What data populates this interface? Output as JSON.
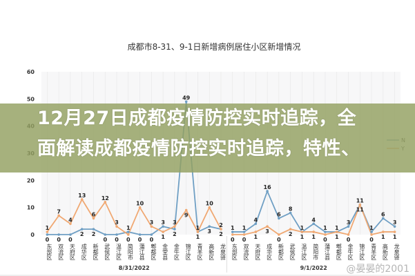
{
  "chart_data": {
    "type": "line",
    "title": "成都市8-31、9-1日新增病例居住小区新增情况",
    "ylim": [
      0,
      60
    ],
    "yticks": [
      0,
      10,
      20,
      30,
      40,
      50,
      60
    ],
    "groups": [
      {
        "label": "8/31/2022",
        "categories": [
          "东部区",
          "双流区",
          "天府区",
          "成华区",
          "新都区",
          "武侯区",
          "温江区",
          "简阳市",
          "蒲江县",
          "郫都区",
          "金堂县",
          "金牛区",
          "锦江区",
          "青羊区",
          "高新区",
          "龙泉驿"
        ],
        "N": [
          0,
          0,
          0,
          2,
          2,
          0,
          0,
          1,
          0,
          0,
          3,
          2,
          49,
          1,
          3,
          2
        ],
        "Y": [
          1,
          7,
          4,
          13,
          6,
          12,
          3,
          0,
          10,
          3,
          1,
          3,
          9,
          1,
          10,
          2
        ]
      },
      {
        "label": "9/1/2022",
        "categories": [
          "东部区",
          "双流区",
          "天府区",
          "成华区",
          "新都区",
          "武侯区",
          "温江区",
          "简阳市",
          "蒲江县",
          "郫都区",
          "金牛区",
          "锦江区",
          "青羊区",
          "高新区",
          "龙泉驿"
        ],
        "N": [
          1,
          1,
          4,
          16,
          6,
          8,
          1,
          4,
          1,
          1,
          3,
          11,
          1,
          6,
          3
        ],
        "Y": [
          0,
          0,
          1,
          3,
          0,
          2,
          1,
          1,
          0,
          1,
          0,
          11,
          0,
          1,
          1
        ]
      }
    ],
    "series": [
      {
        "name": "N",
        "color": "#6f9fc4"
      },
      {
        "name": "Y",
        "color": "#f0a872"
      }
    ],
    "legend": "right",
    "grid": true
  },
  "banner": {
    "line1": "12月27日成都疫情防控实时追踪，全",
    "line2": "面解读成都疫情防控实时追踪，特性、"
  },
  "watermark": "@晏晏的2001",
  "banner_color": "#92a060"
}
